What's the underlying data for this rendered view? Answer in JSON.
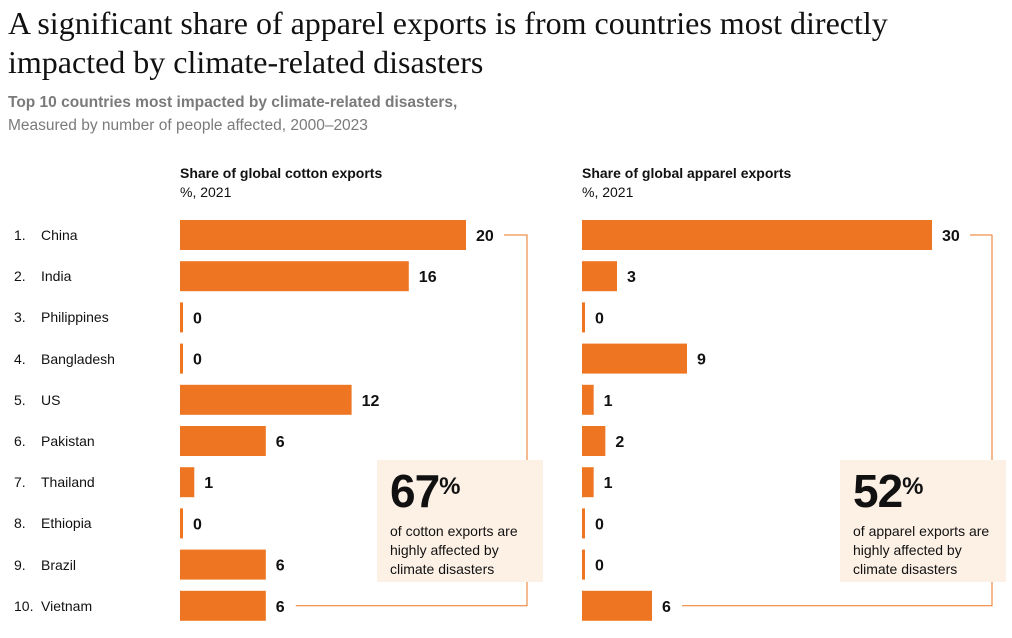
{
  "title": "A significant share of apparel exports is from countries most directly impacted by climate-related disasters",
  "subtitle_bold": "Top 10 countries most impacted by climate-related disasters,",
  "subtitle": "Measured by number of people affected, 2000–2023",
  "colors": {
    "bar": "#ee7623",
    "callout_bg": "#fdf1e6",
    "connector": "#ee7623",
    "text": "#111111",
    "muted": "#7a7a7a"
  },
  "countries": [
    "1.|China",
    "2.|India",
    "3.|Philippines",
    "4.|Bangladesh",
    "5.|US",
    "6.|Pakistan",
    "7.|Thailand",
    "8.|Ethiopia",
    "9.|Brazil",
    "10.|Vietnam"
  ],
  "callouts": {
    "cotton": {
      "value": "67",
      "unit": "%",
      "text": "of cotton exports are highly affected by climate disasters"
    },
    "apparel": {
      "value": "52",
      "unit": "%",
      "text": "of apparel exports are highly affected by climate disasters"
    }
  },
  "chart_data": [
    {
      "type": "bar",
      "orientation": "horizontal",
      "title": "Share of global cotton exports",
      "unit_label": "%, 2021",
      "categories": [
        "China",
        "India",
        "Philippines",
        "Bangladesh",
        "US",
        "Pakistan",
        "Thailand",
        "Ethiopia",
        "Brazil",
        "Vietnam"
      ],
      "values": [
        20,
        16,
        0,
        0,
        12,
        6,
        1,
        0,
        6,
        6
      ],
      "xlim": [
        0,
        20
      ]
    },
    {
      "type": "bar",
      "orientation": "horizontal",
      "title": "Share of global apparel exports",
      "unit_label": "%, 2021",
      "categories": [
        "China",
        "India",
        "Philippines",
        "Bangladesh",
        "US",
        "Pakistan",
        "Thailand",
        "Ethiopia",
        "Brazil",
        "Vietnam"
      ],
      "values": [
        30,
        3,
        0,
        9,
        1,
        2,
        1,
        0,
        0,
        6
      ],
      "xlim": [
        0,
        30
      ]
    }
  ]
}
